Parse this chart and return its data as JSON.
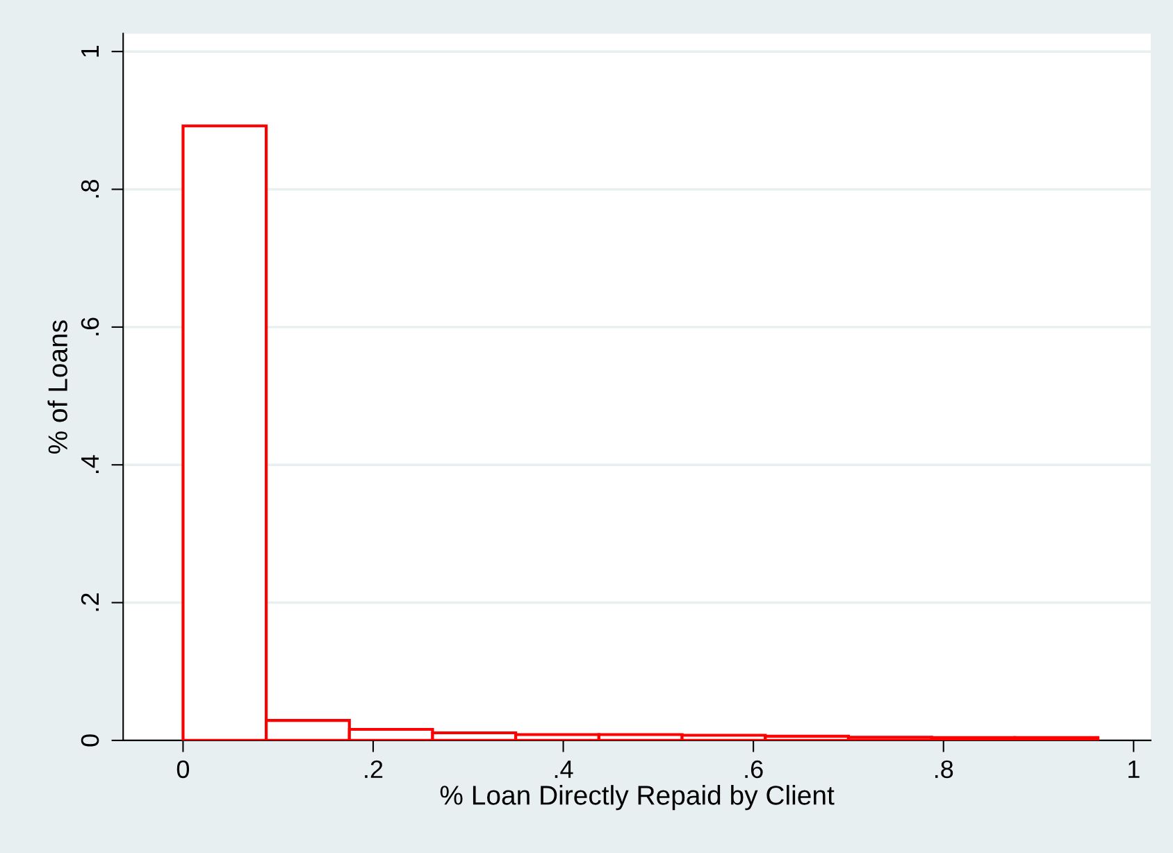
{
  "chart_data": {
    "type": "histogram",
    "xlabel": "% Loan Directly Repaid by Client",
    "ylabel": "% of Loans",
    "bins": [
      0,
      0.0875,
      0.175,
      0.2625,
      0.35,
      0.4375,
      0.525,
      0.6125,
      0.7,
      0.7875,
      0.875,
      0.9625
    ],
    "values": [
      0.892,
      0.029,
      0.016,
      0.011,
      0.0085,
      0.0085,
      0.0075,
      0.006,
      0.0045,
      0.004,
      0.004
    ],
    "color": "#ff0000",
    "xlim": [
      -0.063,
      1.018
    ],
    "ylim": [
      0,
      1.026
    ],
    "xticks": [
      {
        "value": 0,
        "label": "0"
      },
      {
        "value": 0.2,
        "label": ".2"
      },
      {
        "value": 0.4,
        "label": ".4"
      },
      {
        "value": 0.6,
        "label": ".6"
      },
      {
        "value": 0.8,
        "label": ".8"
      },
      {
        "value": 1,
        "label": "1"
      }
    ],
    "yticks": [
      {
        "value": 0,
        "label": "0"
      },
      {
        "value": 0.2,
        "label": ".2"
      },
      {
        "value": 0.4,
        "label": ".4"
      },
      {
        "value": 0.6,
        "label": ".6"
      },
      {
        "value": 0.8,
        "label": ".8"
      },
      {
        "value": 1,
        "label": "1"
      }
    ],
    "grid": "y"
  }
}
